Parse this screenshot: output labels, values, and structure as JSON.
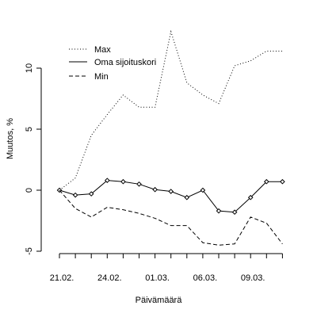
{
  "chart_data": {
    "type": "line",
    "xlabel": "Päivämäärä",
    "ylabel": "Muutos, %",
    "ylim": [
      -5,
      13
    ],
    "y_ticks": [
      -5,
      0,
      5,
      10
    ],
    "x_tick_labels": [
      {
        "index": 0,
        "label": "21.02."
      },
      {
        "index": 3,
        "label": "24.02."
      },
      {
        "index": 6,
        "label": "01.03."
      },
      {
        "index": 9,
        "label": "06.03."
      },
      {
        "index": 12,
        "label": "09.03."
      }
    ],
    "n_points": 15,
    "series": [
      {
        "name": "Max",
        "style": "dotted",
        "values": [
          0,
          1.0,
          4.5,
          6.2,
          7.8,
          6.8,
          6.8,
          13.0,
          8.8,
          7.8,
          7.1,
          10.2,
          10.6,
          11.4,
          11.4
        ]
      },
      {
        "name": "Oma sijoituskori",
        "style": "solid-points",
        "values": [
          0,
          -0.4,
          -0.3,
          0.8,
          0.7,
          0.5,
          0.05,
          -0.1,
          -0.6,
          0.0,
          -1.7,
          -1.8,
          -0.6,
          0.7,
          0.7
        ]
      },
      {
        "name": "Min",
        "style": "dashed",
        "values": [
          0,
          -1.5,
          -2.2,
          -1.4,
          -1.6,
          -1.9,
          -2.3,
          -2.9,
          -2.9,
          -4.3,
          -4.5,
          -4.4,
          -2.2,
          -2.7,
          -4.4
        ]
      }
    ],
    "legend_position": "top-left",
    "grid": false
  },
  "colors": {
    "line": "#000000",
    "background": "#ffffff"
  }
}
